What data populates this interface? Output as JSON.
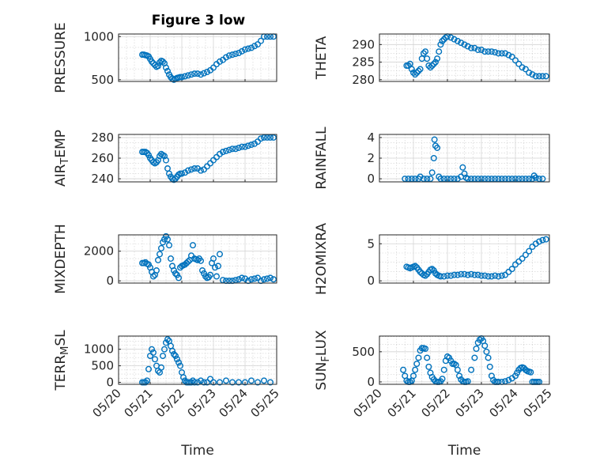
{
  "figure": {
    "title": "Figure 3 low",
    "marker_color": "#0072bd",
    "background": "#ffffff"
  },
  "chart_data": [
    {
      "type": "scatter",
      "name": "pressure",
      "title": "Figure 3 low",
      "ylabel": "PRESSURE",
      "xlabel": "",
      "xlim": [
        0,
        5
      ],
      "ylim": [
        480,
        1030
      ],
      "yticks": [
        500,
        1000
      ],
      "ytick_labels": [
        "500",
        "1000"
      ],
      "x": [
        0.75,
        0.8,
        0.85,
        0.9,
        0.95,
        1.0,
        1.05,
        1.1,
        1.15,
        1.2,
        1.25,
        1.3,
        1.35,
        1.4,
        1.45,
        1.5,
        1.55,
        1.6,
        1.65,
        1.7,
        1.75,
        1.8,
        1.85,
        1.9,
        1.95,
        2.0,
        2.1,
        2.2,
        2.3,
        2.4,
        2.5,
        2.6,
        2.7,
        2.8,
        2.9,
        3.0,
        3.1,
        3.2,
        3.3,
        3.4,
        3.5,
        3.6,
        3.7,
        3.8,
        3.9,
        4.0,
        4.1,
        4.2,
        4.3,
        4.4,
        4.5,
        4.6,
        4.7,
        4.8,
        4.9
      ],
      "y": [
        790,
        790,
        785,
        780,
        770,
        740,
        710,
        690,
        670,
        650,
        660,
        700,
        720,
        710,
        690,
        640,
        600,
        560,
        530,
        510,
        500,
        510,
        520,
        525,
        530,
        530,
        540,
        550,
        560,
        570,
        570,
        560,
        575,
        590,
        610,
        640,
        680,
        710,
        730,
        760,
        780,
        790,
        800,
        810,
        830,
        850,
        860,
        870,
        890,
        910,
        950,
        1000,
        1000,
        1000,
        1000
      ]
    },
    {
      "type": "scatter",
      "name": "theta",
      "ylabel": "THETA",
      "xlabel": "",
      "xlim": [
        0,
        5
      ],
      "ylim": [
        279.5,
        293
      ],
      "yticks": [
        280,
        285,
        290
      ],
      "ytick_labels": [
        "280",
        "285",
        "290"
      ],
      "x": [
        0.8,
        0.85,
        0.9,
        0.95,
        1.0,
        1.05,
        1.1,
        1.15,
        1.2,
        1.25,
        1.3,
        1.35,
        1.4,
        1.45,
        1.5,
        1.55,
        1.6,
        1.65,
        1.7,
        1.75,
        1.8,
        1.85,
        1.9,
        1.95,
        2.0,
        2.1,
        2.2,
        2.3,
        2.4,
        2.5,
        2.6,
        2.7,
        2.8,
        2.9,
        3.0,
        3.1,
        3.2,
        3.3,
        3.4,
        3.5,
        3.6,
        3.7,
        3.8,
        3.9,
        4.0,
        4.1,
        4.2,
        4.3,
        4.4,
        4.5,
        4.6,
        4.7,
        4.8,
        4.9
      ],
      "y": [
        284,
        284,
        284.5,
        283,
        282,
        281.5,
        282,
        282.5,
        283,
        286,
        287.5,
        288,
        286,
        284,
        283.5,
        284,
        284.5,
        285,
        286,
        288,
        290,
        291,
        291.5,
        292,
        292.3,
        292,
        291.5,
        291,
        290.5,
        290,
        289.5,
        289,
        289,
        288.5,
        288.5,
        288,
        288,
        288,
        287.8,
        287.5,
        287.5,
        287.5,
        287,
        286.5,
        285.5,
        284.5,
        283.5,
        283,
        282,
        281.5,
        281,
        281,
        281,
        281
      ]
    },
    {
      "type": "scatter",
      "name": "air_temp",
      "ylabel": "AIR_TEMP",
      "xlabel": "",
      "xlim": [
        0,
        5
      ],
      "ylim": [
        237,
        283
      ],
      "yticks": [
        240,
        260,
        280
      ],
      "ytick_labels": [
        "240",
        "260",
        "280"
      ],
      "x": [
        0.75,
        0.8,
        0.85,
        0.9,
        0.95,
        1.0,
        1.05,
        1.1,
        1.15,
        1.2,
        1.25,
        1.3,
        1.35,
        1.4,
        1.45,
        1.5,
        1.55,
        1.6,
        1.65,
        1.7,
        1.75,
        1.8,
        1.85,
        1.9,
        1.95,
        2.0,
        2.1,
        2.2,
        2.3,
        2.4,
        2.5,
        2.6,
        2.7,
        2.8,
        2.9,
        3.0,
        3.1,
        3.2,
        3.3,
        3.4,
        3.5,
        3.6,
        3.7,
        3.8,
        3.9,
        4.0,
        4.1,
        4.2,
        4.3,
        4.4,
        4.5,
        4.6,
        4.7,
        4.8,
        4.9
      ],
      "y": [
        266,
        266,
        266,
        265,
        263,
        260,
        258,
        256,
        255,
        256,
        258,
        262,
        264,
        263,
        262,
        258,
        250,
        245,
        242,
        240,
        239,
        240,
        242,
        244,
        245,
        245,
        246,
        248,
        249,
        250,
        250,
        248,
        249,
        252,
        255,
        258,
        261,
        264,
        266,
        267,
        268,
        269,
        269,
        270,
        271,
        271,
        272,
        273,
        274,
        276,
        279,
        280,
        280,
        280,
        280
      ]
    },
    {
      "type": "scatter",
      "name": "rainfall",
      "ylabel": "RAINFALL",
      "xlabel": "",
      "xlim": [
        0,
        5
      ],
      "ylim": [
        -0.3,
        4.3
      ],
      "yticks": [
        0,
        2,
        4
      ],
      "ytick_labels": [
        "0",
        "2",
        "4"
      ],
      "x": [
        0.75,
        0.85,
        0.95,
        1.05,
        1.15,
        1.2,
        1.3,
        1.4,
        1.5,
        1.55,
        1.6,
        1.62,
        1.65,
        1.7,
        1.75,
        1.8,
        1.9,
        2.0,
        2.1,
        2.2,
        2.3,
        2.4,
        2.45,
        2.5,
        2.55,
        2.6,
        2.7,
        2.8,
        2.9,
        3.0,
        3.1,
        3.2,
        3.3,
        3.4,
        3.5,
        3.6,
        3.7,
        3.8,
        3.9,
        4.0,
        4.1,
        4.2,
        4.3,
        4.4,
        4.5,
        4.55,
        4.6,
        4.7,
        4.8
      ],
      "y": [
        0,
        0,
        0,
        0,
        0,
        0.2,
        0,
        0,
        0,
        0.6,
        2.0,
        3.8,
        3.2,
        3.0,
        0.2,
        0,
        0,
        0,
        0,
        0,
        0,
        0.2,
        1.1,
        0.5,
        0.1,
        0,
        0,
        0,
        0,
        0,
        0,
        0,
        0,
        0,
        0,
        0,
        0,
        0,
        0,
        0,
        0,
        0,
        0,
        0,
        0,
        0.3,
        0.1,
        0,
        0
      ]
    },
    {
      "type": "scatter",
      "name": "mixdepth",
      "ylabel": "MIXDEPTH",
      "xlabel": "",
      "xlim": [
        0,
        5
      ],
      "ylim": [
        -150,
        3100
      ],
      "yticks": [
        0,
        2000
      ],
      "ytick_labels": [
        "0",
        "2000"
      ],
      "x": [
        0.75,
        0.8,
        0.85,
        0.9,
        0.95,
        1.0,
        1.05,
        1.1,
        1.15,
        1.2,
        1.25,
        1.3,
        1.35,
        1.4,
        1.45,
        1.5,
        1.55,
        1.6,
        1.65,
        1.7,
        1.75,
        1.8,
        1.85,
        1.9,
        1.95,
        2.0,
        2.05,
        2.1,
        2.15,
        2.2,
        2.25,
        2.3,
        2.35,
        2.4,
        2.45,
        2.5,
        2.55,
        2.6,
        2.65,
        2.7,
        2.75,
        2.8,
        2.85,
        2.9,
        2.95,
        3.0,
        3.05,
        3.1,
        3.15,
        3.2,
        3.3,
        3.4,
        3.5,
        3.6,
        3.7,
        3.8,
        3.9,
        4.0,
        4.1,
        4.2,
        4.3,
        4.4,
        4.5,
        4.6,
        4.7,
        4.8,
        4.9
      ],
      "y": [
        1200,
        1200,
        1250,
        1150,
        1100,
        900,
        600,
        300,
        400,
        700,
        1400,
        1800,
        2200,
        2600,
        2800,
        3000,
        2800,
        2400,
        1500,
        1000,
        700,
        500,
        400,
        200,
        900,
        1000,
        1050,
        1100,
        1200,
        1300,
        1400,
        1700,
        2400,
        1500,
        1450,
        1400,
        1500,
        1350,
        700,
        500,
        300,
        200,
        250,
        400,
        1200,
        1500,
        900,
        300,
        1000,
        1800,
        50,
        0,
        0,
        0,
        50,
        100,
        200,
        150,
        0,
        100,
        150,
        200,
        0,
        100,
        150,
        200,
        100
      ]
    },
    {
      "type": "scatter",
      "name": "h2omixra",
      "ylabel": "H2OMIXRA",
      "xlabel": "",
      "xlim": [
        0,
        5
      ],
      "ylim": [
        -0.3,
        6.2
      ],
      "yticks": [
        0,
        5
      ],
      "ytick_labels": [
        "0",
        "5"
      ],
      "x": [
        0.8,
        0.85,
        0.9,
        0.95,
        1.0,
        1.05,
        1.1,
        1.15,
        1.2,
        1.25,
        1.3,
        1.35,
        1.4,
        1.45,
        1.5,
        1.55,
        1.6,
        1.65,
        1.7,
        1.75,
        1.8,
        1.9,
        2.0,
        2.1,
        2.2,
        2.3,
        2.4,
        2.5,
        2.6,
        2.7,
        2.8,
        2.9,
        3.0,
        3.1,
        3.2,
        3.3,
        3.4,
        3.5,
        3.6,
        3.7,
        3.8,
        3.9,
        4.0,
        4.1,
        4.2,
        4.3,
        4.4,
        4.5,
        4.6,
        4.7,
        4.8,
        4.9
      ],
      "y": [
        1.9,
        1.8,
        1.7,
        1.8,
        1.9,
        2.0,
        1.8,
        1.5,
        1.2,
        1.0,
        0.8,
        0.7,
        0.9,
        1.2,
        1.5,
        1.6,
        1.4,
        1.0,
        0.8,
        0.7,
        0.6,
        0.6,
        0.7,
        0.7,
        0.8,
        0.8,
        0.9,
        0.9,
        0.8,
        0.9,
        0.8,
        0.8,
        0.7,
        0.7,
        0.6,
        0.6,
        0.7,
        0.6,
        0.7,
        0.8,
        1.2,
        1.6,
        2.2,
        2.6,
        3.0,
        3.5,
        4.0,
        4.6,
        5.0,
        5.3,
        5.5,
        5.6
      ]
    },
    {
      "type": "scatter",
      "name": "terr_msl",
      "ylabel": "TERR_MSL",
      "xlabel": "Time",
      "xlim": [
        0,
        5
      ],
      "ylim": [
        -60,
        1400
      ],
      "yticks": [
        0,
        500,
        1000
      ],
      "ytick_labels": [
        "0",
        "500",
        "1000"
      ],
      "xticks": [
        0,
        1,
        2,
        3,
        4,
        5
      ],
      "xtick_labels": [
        "05/20",
        "05/21",
        "05/22",
        "05/23",
        "05/24",
        "05/25"
      ],
      "x": [
        0.75,
        0.8,
        0.85,
        0.9,
        0.95,
        1.0,
        1.05,
        1.1,
        1.15,
        1.2,
        1.25,
        1.3,
        1.35,
        1.4,
        1.45,
        1.5,
        1.55,
        1.6,
        1.65,
        1.7,
        1.75,
        1.8,
        1.85,
        1.9,
        1.95,
        2.0,
        2.05,
        2.1,
        2.15,
        2.2,
        2.25,
        2.3,
        2.35,
        2.4,
        2.5,
        2.6,
        2.7,
        2.8,
        2.9,
        3.0,
        3.2,
        3.4,
        3.6,
        3.8,
        4.0,
        4.2,
        4.4,
        4.6,
        4.8
      ],
      "y": [
        0,
        0,
        0,
        50,
        400,
        800,
        1000,
        900,
        700,
        500,
        350,
        300,
        450,
        800,
        1000,
        1200,
        1300,
        1250,
        1100,
        950,
        850,
        800,
        700,
        600,
        500,
        300,
        150,
        50,
        0,
        0,
        0,
        0,
        50,
        0,
        0,
        50,
        0,
        0,
        100,
        0,
        0,
        50,
        0,
        0,
        0,
        50,
        0,
        50,
        0
      ]
    },
    {
      "type": "scatter",
      "name": "sun_flux",
      "ylabel": "SUN_FLUX",
      "xlabel": "Time",
      "xlim": [
        0,
        5
      ],
      "ylim": [
        -40,
        760
      ],
      "yticks": [
        0,
        500
      ],
      "ytick_labels": [
        "0",
        "500"
      ],
      "xticks": [
        0,
        1,
        2,
        3,
        4,
        5
      ],
      "xtick_labels": [
        "05/20",
        "05/21",
        "05/22",
        "05/23",
        "05/24",
        "05/25"
      ],
      "x": [
        0.7,
        0.75,
        0.8,
        0.85,
        0.9,
        0.95,
        1.0,
        1.05,
        1.1,
        1.15,
        1.2,
        1.25,
        1.3,
        1.35,
        1.4,
        1.45,
        1.5,
        1.55,
        1.6,
        1.65,
        1.7,
        1.75,
        1.8,
        1.85,
        1.9,
        1.95,
        2.0,
        2.05,
        2.1,
        2.15,
        2.2,
        2.25,
        2.3,
        2.35,
        2.4,
        2.45,
        2.5,
        2.55,
        2.6,
        2.7,
        2.8,
        2.85,
        2.9,
        2.95,
        3.0,
        3.05,
        3.1,
        3.15,
        3.2,
        3.25,
        3.3,
        3.35,
        3.4,
        3.45,
        3.5,
        3.6,
        3.7,
        3.8,
        3.9,
        4.0,
        4.05,
        4.1,
        4.15,
        4.2,
        4.25,
        4.3,
        4.35,
        4.4,
        4.45,
        4.5,
        4.55,
        4.6,
        4.65,
        4.7
      ],
      "y": [
        200,
        100,
        20,
        0,
        0,
        20,
        100,
        200,
        300,
        400,
        520,
        560,
        560,
        550,
        400,
        250,
        150,
        80,
        40,
        10,
        0,
        0,
        10,
        50,
        200,
        350,
        420,
        400,
        350,
        300,
        300,
        280,
        200,
        100,
        40,
        10,
        0,
        0,
        10,
        200,
        400,
        550,
        650,
        700,
        720,
        680,
        600,
        500,
        400,
        250,
        100,
        30,
        0,
        0,
        0,
        0,
        10,
        30,
        60,
        100,
        150,
        200,
        230,
        240,
        230,
        200,
        180,
        170,
        160,
        0,
        0,
        0,
        0,
        0
      ]
    }
  ]
}
